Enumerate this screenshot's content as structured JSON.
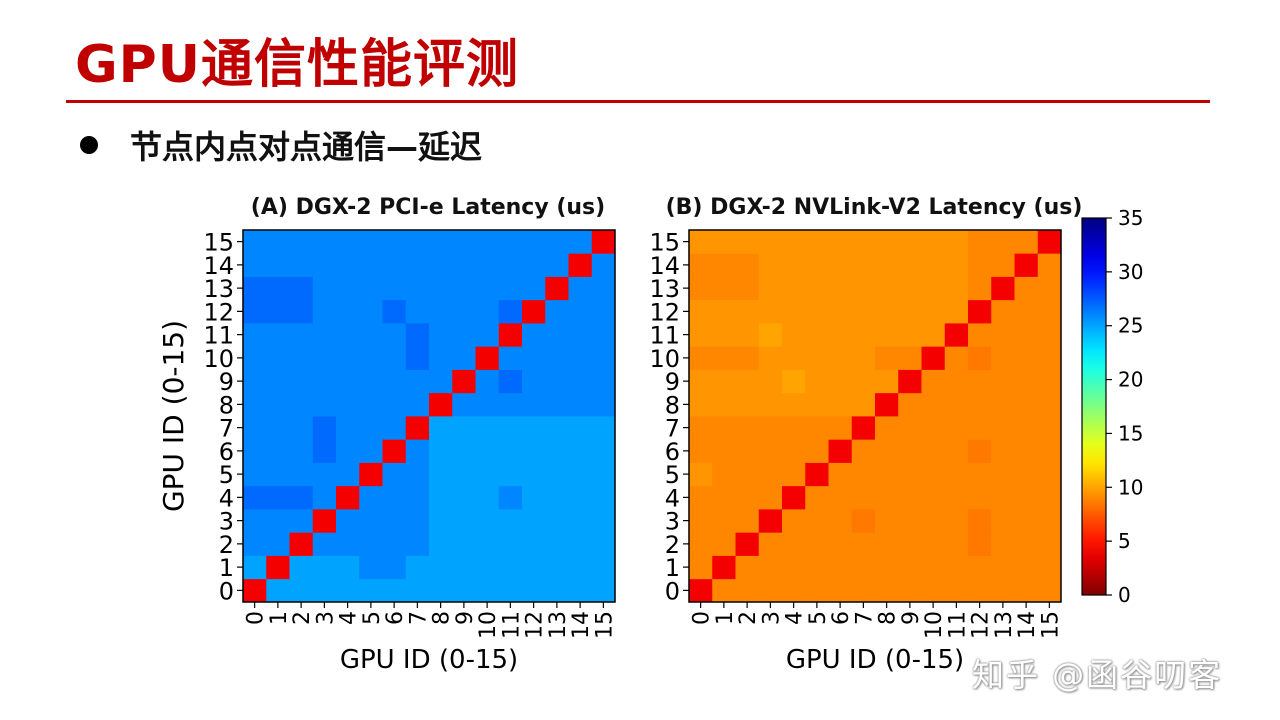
{
  "slide": {
    "title": "GPU通信性能评测",
    "bullet": "节点内点对点通信—延迟",
    "watermark": "知乎 @函谷叨客"
  },
  "chart_data": [
    {
      "type": "heatmap",
      "title": "(A) DGX-2 PCI-e Latency (us)",
      "xlabel": "GPU ID (0-15)",
      "ylabel": "GPU ID (0-15)",
      "x_ticks": [
        "0",
        "1",
        "2",
        "3",
        "4",
        "5",
        "6",
        "7",
        "8",
        "9",
        "10",
        "11",
        "12",
        "13",
        "14",
        "15"
      ],
      "y_ticks": [
        "0",
        "1",
        "2",
        "3",
        "4",
        "5",
        "6",
        "7",
        "8",
        "9",
        "10",
        "11",
        "12",
        "13",
        "14",
        "15"
      ],
      "diagonal_value": 4,
      "values": [
        [
          4,
          25,
          25,
          25,
          25,
          25,
          25,
          25,
          25,
          25,
          25,
          25,
          25,
          25,
          25,
          25
        ],
        [
          25,
          4,
          25,
          25,
          25,
          26,
          26,
          25,
          25,
          25,
          25,
          25,
          25,
          25,
          25,
          25
        ],
        [
          26,
          26,
          4,
          26,
          26,
          26,
          26,
          26,
          25,
          25,
          25,
          25,
          25,
          25,
          25,
          25
        ],
        [
          26,
          26,
          26,
          4,
          26,
          26,
          26,
          26,
          25,
          25,
          25,
          25,
          25,
          25,
          25,
          25
        ],
        [
          27,
          27,
          27,
          26,
          4,
          26,
          26,
          26,
          25,
          25,
          25,
          26,
          25,
          25,
          25,
          25
        ],
        [
          26,
          26,
          26,
          26,
          26,
          4,
          26,
          26,
          25,
          25,
          25,
          25,
          25,
          25,
          25,
          25
        ],
        [
          26,
          26,
          26,
          27,
          26,
          26,
          4,
          26,
          25,
          25,
          25,
          25,
          25,
          25,
          25,
          25
        ],
        [
          26,
          26,
          26,
          27,
          26,
          26,
          26,
          4,
          25,
          25,
          25,
          25,
          25,
          25,
          25,
          25
        ],
        [
          26,
          26,
          26,
          26,
          26,
          26,
          26,
          26,
          4,
          26,
          26,
          26,
          26,
          26,
          26,
          26
        ],
        [
          26,
          26,
          26,
          26,
          26,
          26,
          26,
          26,
          26,
          4,
          26,
          27,
          26,
          26,
          26,
          26
        ],
        [
          26,
          26,
          26,
          26,
          26,
          26,
          26,
          27,
          26,
          26,
          4,
          26,
          26,
          26,
          26,
          26
        ],
        [
          26,
          26,
          26,
          26,
          26,
          26,
          26,
          27,
          26,
          26,
          26,
          4,
          26,
          26,
          26,
          26
        ],
        [
          27,
          27,
          27,
          26,
          26,
          26,
          27,
          26,
          26,
          26,
          26,
          27,
          4,
          26,
          26,
          26
        ],
        [
          27,
          27,
          27,
          26,
          26,
          26,
          26,
          26,
          26,
          26,
          26,
          26,
          26,
          4,
          26,
          26
        ],
        [
          26,
          26,
          26,
          26,
          26,
          26,
          26,
          26,
          26,
          26,
          26,
          26,
          26,
          26,
          4,
          26
        ],
        [
          26,
          26,
          26,
          26,
          26,
          26,
          26,
          26,
          26,
          26,
          26,
          26,
          26,
          26,
          26,
          4
        ]
      ]
    },
    {
      "type": "heatmap",
      "title": "(B) DGX-2 NVLink-V2 Latency (us)",
      "xlabel": "GPU ID (0-15)",
      "ylabel": "",
      "x_ticks": [
        "0",
        "1",
        "2",
        "3",
        "4",
        "5",
        "6",
        "7",
        "8",
        "9",
        "10",
        "11",
        "12",
        "13",
        "14",
        "15"
      ],
      "y_ticks": [
        "0",
        "1",
        "2",
        "3",
        "4",
        "5",
        "6",
        "7",
        "8",
        "9",
        "10",
        "11",
        "12",
        "13",
        "14",
        "15"
      ],
      "diagonal_value": 4,
      "values": [
        [
          4,
          9,
          9,
          9,
          9,
          9,
          9,
          9,
          9,
          9,
          9,
          9,
          9,
          9,
          9,
          9
        ],
        [
          9,
          4,
          9,
          9,
          9,
          9,
          9,
          9,
          9,
          9,
          9,
          9,
          9,
          9,
          9,
          9
        ],
        [
          9,
          9,
          4,
          9,
          9,
          9,
          9,
          9,
          9,
          9,
          9,
          9,
          8.5,
          9,
          9,
          9
        ],
        [
          9,
          9,
          9,
          4,
          9,
          9,
          9,
          8.5,
          9,
          9,
          9,
          9,
          8.5,
          9,
          9,
          9
        ],
        [
          9,
          9,
          9,
          9,
          4,
          9,
          9,
          9,
          9,
          9,
          9,
          9,
          9,
          9,
          9,
          9
        ],
        [
          9.5,
          9,
          9,
          9,
          9,
          4,
          9,
          9,
          9,
          9,
          9,
          9,
          9,
          9,
          9,
          9
        ],
        [
          9,
          9,
          9,
          9,
          9,
          9,
          4,
          9,
          9,
          9,
          9,
          9,
          8.5,
          9,
          9,
          9
        ],
        [
          9,
          9,
          9,
          9,
          9,
          9,
          9,
          4,
          9,
          9,
          9,
          9,
          9,
          9,
          9,
          9
        ],
        [
          9.5,
          9.5,
          9.5,
          9.5,
          9.5,
          9.5,
          9.5,
          9.5,
          4,
          9,
          9,
          9,
          9,
          9,
          9,
          9
        ],
        [
          9.5,
          9.5,
          9.5,
          9.5,
          10,
          9.5,
          9.5,
          9.5,
          9.5,
          4,
          9,
          9,
          9,
          9,
          9,
          9
        ],
        [
          9,
          9,
          9,
          9.5,
          9.5,
          9.5,
          9.5,
          9.5,
          9,
          9,
          4,
          9,
          8.5,
          9,
          9,
          9
        ],
        [
          9.5,
          9.5,
          9.5,
          10,
          9.5,
          9.5,
          9.5,
          9.5,
          9.5,
          9.5,
          9.5,
          4,
          9,
          9,
          9,
          9
        ],
        [
          9.5,
          9.5,
          9.5,
          9.5,
          9.5,
          9.5,
          9.5,
          9.5,
          9.5,
          9.5,
          9.5,
          9.5,
          4,
          9,
          9,
          9
        ],
        [
          9,
          9,
          9,
          9.5,
          9.5,
          9.5,
          9.5,
          9.5,
          9.5,
          9.5,
          9.5,
          9.5,
          9,
          4,
          9,
          9
        ],
        [
          9,
          9,
          9,
          9.5,
          9.5,
          9.5,
          9.5,
          9.5,
          9.5,
          9.5,
          9.5,
          9.5,
          9,
          9,
          4,
          9
        ],
        [
          9.5,
          9.5,
          9.5,
          9.5,
          9.5,
          9.5,
          9.5,
          9.5,
          9.5,
          9.5,
          9.5,
          9.5,
          9,
          9,
          9,
          4
        ]
      ]
    }
  ],
  "colorbar": {
    "colormap": "jet_r",
    "min": 0,
    "max": 35,
    "ticks": [
      0,
      5,
      10,
      15,
      20,
      25,
      30,
      35
    ]
  }
}
